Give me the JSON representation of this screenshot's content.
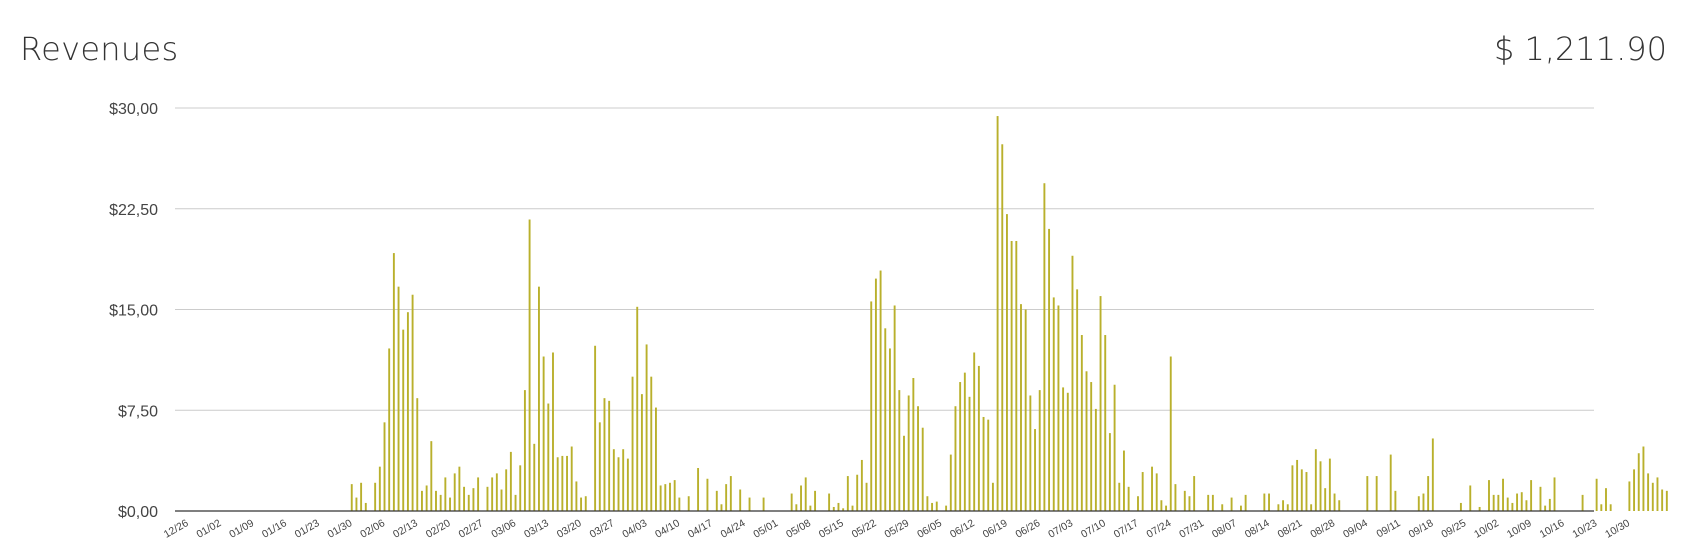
{
  "header": {
    "title": "Revenues",
    "total": "$ 1,211.90"
  },
  "colors": {
    "bar": "#b9b02c",
    "grid": "#cccccc",
    "axis": "#333333"
  },
  "chart_data": {
    "type": "bar",
    "title": "Revenues",
    "xlabel": "",
    "ylabel": "",
    "ylim": [
      0,
      30
    ],
    "y_ticks": [
      0,
      7.5,
      15,
      22.5,
      30
    ],
    "y_tick_labels": [
      "$0,00",
      "$7,50",
      "$15,00",
      "$22,50",
      "$30,00"
    ],
    "x_tick_labels": [
      "12/26",
      "01/02",
      "01/09",
      "01/16",
      "01/23",
      "01/30",
      "02/06",
      "02/13",
      "02/20",
      "02/27",
      "03/06",
      "03/13",
      "03/20",
      "03/27",
      "04/03",
      "04/10",
      "04/17",
      "04/24",
      "05/01",
      "05/08",
      "05/15",
      "05/22",
      "05/29",
      "06/05",
      "06/12",
      "06/19",
      "06/26",
      "07/03",
      "07/10",
      "07/17",
      "07/24",
      "07/31",
      "08/07",
      "08/14",
      "08/21",
      "08/28",
      "09/04",
      "09/11",
      "09/18",
      "09/25",
      "10/02",
      "10/09",
      "10/16",
      "10/23",
      "10/30"
    ],
    "days_per_tick": 7,
    "grid": true,
    "values": [
      0,
      0,
      0,
      0,
      0,
      0,
      0,
      0,
      0,
      0,
      0,
      0,
      0,
      0,
      0,
      0,
      0,
      0,
      0,
      0,
      0,
      0,
      0,
      0,
      0,
      0,
      0,
      0,
      0,
      0,
      0,
      0,
      0,
      0,
      0,
      2.0,
      1.0,
      2.1,
      0.6,
      0,
      2.1,
      3.3,
      6.6,
      12.1,
      19.2,
      16.7,
      13.5,
      14.8,
      16.1,
      8.4,
      1.5,
      1.9,
      5.2,
      1.5,
      1.2,
      2.5,
      1.0,
      2.8,
      3.3,
      1.8,
      1.2,
      1.7,
      2.5,
      0,
      1.8,
      2.5,
      2.8,
      1.6,
      3.1,
      4.4,
      1.2,
      3.4,
      9.0,
      21.7,
      5.0,
      16.7,
      11.5,
      8.0,
      11.8,
      4.0,
      4.1,
      4.1,
      4.8,
      2.2,
      1.0,
      1.1,
      0,
      12.3,
      6.6,
      8.4,
      8.2,
      4.6,
      4.0,
      4.6,
      3.9,
      10.0,
      15.2,
      8.7,
      12.4,
      10.0,
      7.7,
      1.9,
      2.0,
      2.1,
      2.3,
      1.0,
      0,
      1.1,
      0,
      3.2,
      0,
      2.4,
      0,
      1.5,
      0.5,
      2.0,
      2.6,
      0,
      1.6,
      0,
      1.0,
      0,
      0,
      1.0,
      0,
      0,
      0,
      0,
      0,
      1.3,
      0.5,
      1.9,
      2.5,
      0.4,
      1.5,
      0,
      0,
      1.3,
      0.3,
      0.6,
      0.2,
      2.6,
      0.4,
      2.7,
      3.8,
      2.1,
      15.6,
      17.3,
      17.9,
      13.6,
      12.1,
      15.3,
      9.0,
      5.6,
      8.6,
      9.9,
      7.8,
      6.2,
      1.1,
      0.6,
      0.7,
      0,
      0.4,
      4.2,
      7.8,
      9.6,
      10.3,
      8.5,
      11.8,
      10.8,
      7.0,
      6.8,
      2.1,
      29.4,
      27.3,
      22.1,
      20.1,
      20.1,
      15.4,
      15.0,
      8.6,
      6.1,
      9.0,
      24.4,
      21.0,
      15.9,
      15.3,
      9.2,
      8.8,
      19.0,
      16.5,
      13.1,
      10.4,
      9.6,
      7.6,
      16.0,
      13.1,
      5.8,
      9.4,
      2.1,
      4.5,
      1.8,
      0,
      1.1,
      2.9,
      0,
      3.3,
      2.8,
      0.8,
      0.4,
      11.5,
      2.0,
      0,
      1.5,
      1.1,
      2.6,
      0,
      0,
      1.2,
      1.2,
      0,
      0.5,
      0,
      1.0,
      0,
      0.4,
      1.2,
      0,
      0,
      0,
      1.3,
      1.3,
      0,
      0.5,
      0.8,
      0.5,
      3.4,
      3.8,
      3.1,
      2.9,
      0.5,
      4.6,
      3.7,
      1.7,
      3.9,
      1.3,
      0.8,
      0,
      0,
      0,
      0,
      0,
      2.6,
      0,
      2.6,
      0,
      0,
      4.2,
      1.5,
      0,
      0,
      0,
      0,
      1.1,
      1.3,
      2.6,
      5.4,
      0,
      0,
      0,
      0,
      0,
      0.6,
      0,
      1.9,
      0,
      0.3,
      0,
      2.3,
      1.2,
      1.2,
      2.4,
      1.0,
      0.6,
      1.3,
      1.4,
      0.8,
      2.3,
      0,
      1.8,
      0.4,
      0.9,
      2.5,
      0,
      0,
      0,
      0,
      0,
      1.2,
      0,
      0,
      2.4,
      0.5,
      1.7,
      0.5,
      0,
      0,
      0,
      2.2,
      3.1,
      4.3,
      4.8,
      2.8,
      2.1,
      2.5,
      1.6,
      1.5
    ]
  }
}
